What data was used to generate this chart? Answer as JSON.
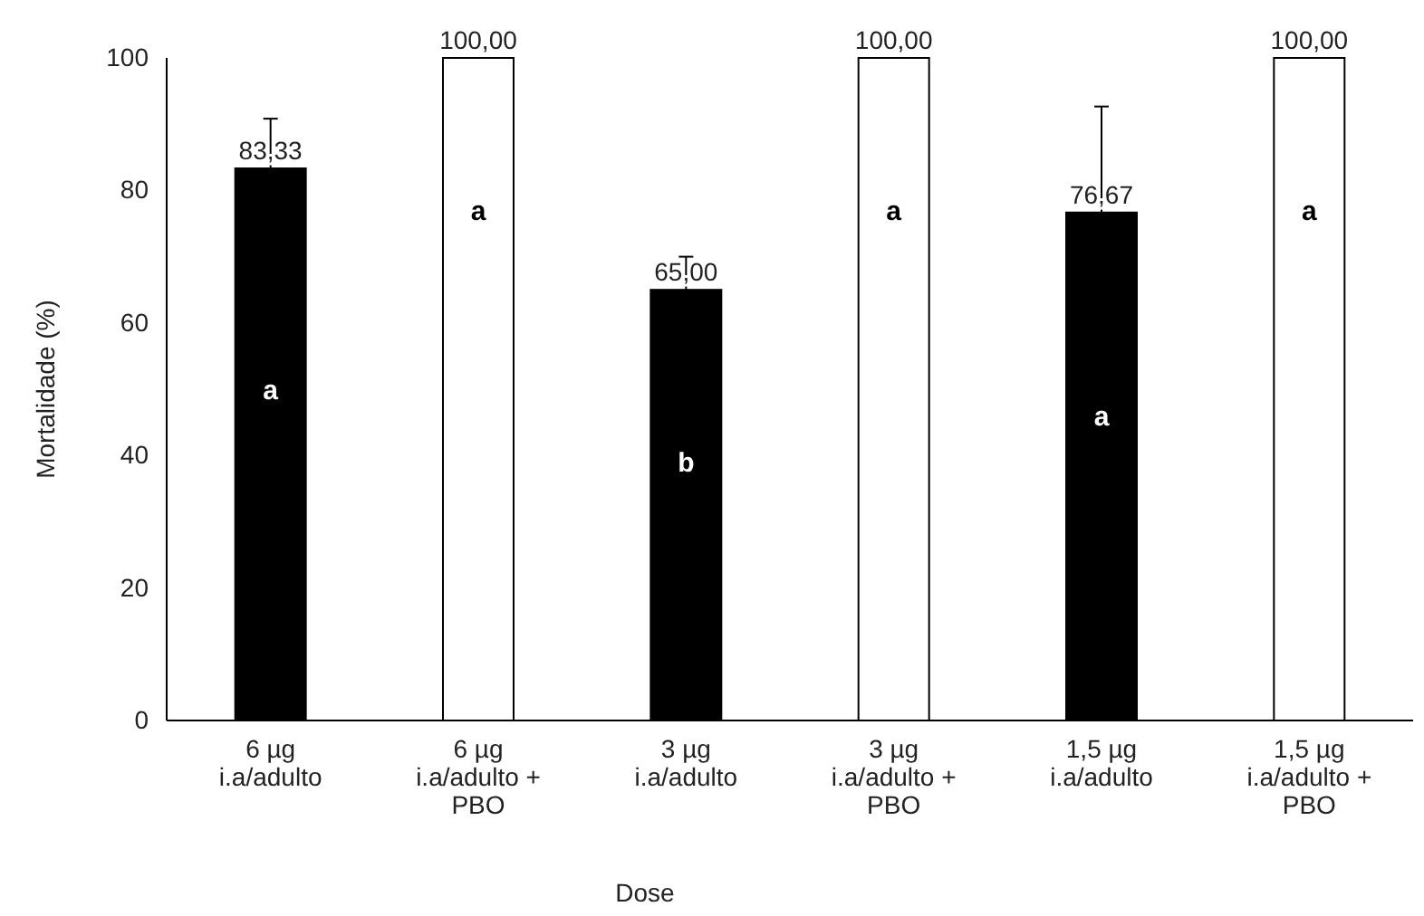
{
  "chart_data": {
    "type": "bar",
    "xlabel": "Dose",
    "ylabel": "Mortalidade  (%)",
    "categories": [
      "6 µg i.a/adulto",
      "6 µg i.a/adulto + PBO",
      "3 µg i.a/adulto",
      "3 µg i.a/adulto + PBO",
      "1,5 µg i.a/adulto",
      "1,5 µg i.a/adulto + PBO"
    ],
    "values": [
      83.33,
      100,
      65,
      100,
      76.67,
      100
    ],
    "colors": [
      "#000000",
      "#ffffff",
      "#000000",
      "#ffffff",
      "#000000",
      "#ffffff"
    ],
    "errors": [
      7.5,
      null,
      5,
      null,
      16,
      null
    ],
    "value_labels": [
      "83,33",
      "100,00",
      "65,00",
      "100,00",
      "76,67",
      "100,00"
    ],
    "ylim": [
      0,
      100
    ],
    "yticks": [
      0,
      20,
      40,
      60,
      80,
      100
    ],
    "grid": false,
    "annotations": [
      "a",
      "a",
      "b",
      "a",
      "a",
      "a"
    ]
  }
}
